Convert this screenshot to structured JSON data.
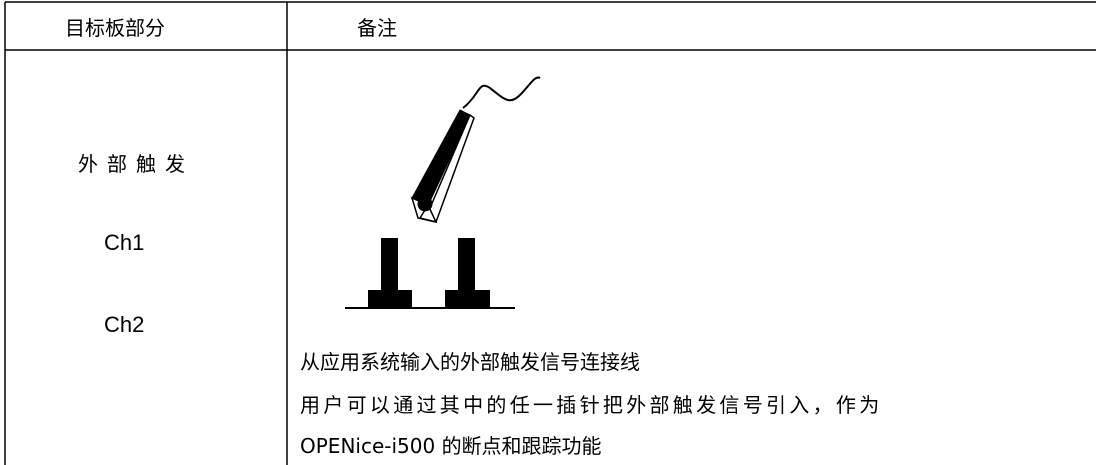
{
  "header": [
    "目标板部分",
    "备注"
  ],
  "left": [
    "外部触发",
    "Ch1",
    "Ch2"
  ],
  "notes": [
    "从应用系统输入的外部触发信号连接线",
    "用户可以通过其中的任一插针把外部触发信号引入，作为",
    "OPENice-i500 的断点和跟踪功能"
  ]
}
